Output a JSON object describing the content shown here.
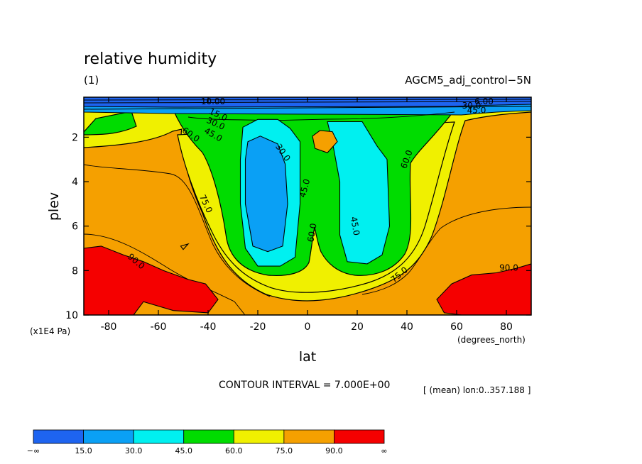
{
  "chart_data": {
    "type": "heatmap",
    "title": "relative humidity",
    "subtitle_left": "(1)",
    "subtitle_right": "AGCM5_adj_control−5N",
    "xlabel": "lat",
    "ylabel": "plev",
    "x_units": "(degrees_north)",
    "y_units": "(x1E4 Pa)",
    "xlim": [
      -90,
      90
    ],
    "ylim": [
      10,
      0.2
    ],
    "x_ticks": [
      -80,
      -60,
      -40,
      -20,
      0,
      20,
      40,
      60,
      80
    ],
    "y_ticks": [
      2,
      4,
      6,
      8,
      10
    ],
    "contour_interval_text": "CONTOUR INTERVAL = 7.000E+00",
    "mean_text": "[ (mean) lon:0..357.188 ]",
    "colorbar": {
      "labels": [
        "−∞",
        "15.0",
        "30.0",
        "45.0",
        "60.0",
        "75.0",
        "90.0",
        "∞"
      ],
      "colors": [
        "#1e64f0",
        "#0aa0f5",
        "#00f0f0",
        "#00dc00",
        "#f0f000",
        "#f5a000",
        "#f50000"
      ]
    },
    "contour_labels": [
      {
        "text": "10.00",
        "lat": -38,
        "plev": 0.4,
        "angle": 0
      },
      {
        "text": "15.0",
        "lat": -36,
        "plev": 1.0,
        "angle": 25
      },
      {
        "text": "30.0",
        "lat": -37,
        "plev": 1.4,
        "angle": 25
      },
      {
        "text": "45.0",
        "lat": -38,
        "plev": 1.9,
        "angle": 30
      },
      {
        "text": "60.0",
        "lat": -47,
        "plev": 1.9,
        "angle": 35
      },
      {
        "text": "75.0",
        "lat": -41,
        "plev": 5.0,
        "angle": 65
      },
      {
        "text": "90.0",
        "lat": -69,
        "plev": 7.6,
        "angle": 40
      },
      {
        "text": "30.0",
        "lat": -10,
        "plev": 2.7,
        "angle": 55
      },
      {
        "text": "45.0",
        "lat": -1,
        "plev": 4.3,
        "angle": -75
      },
      {
        "text": "60.0",
        "lat": 2,
        "plev": 6.3,
        "angle": -80
      },
      {
        "text": "45.0",
        "lat": 19,
        "plev": 6.0,
        "angle": 80
      },
      {
        "text": "60.0",
        "lat": 40,
        "plev": 3.0,
        "angle": -70
      },
      {
        "text": "75.0",
        "lat": 37,
        "plev": 8.2,
        "angle": -40
      },
      {
        "text": "90.0",
        "lat": 81,
        "plev": 7.9,
        "angle": 0
      },
      {
        "text": "6.00",
        "lat": 71,
        "plev": 0.4,
        "angle": 0
      },
      {
        "text": "30.0",
        "lat": 66,
        "plev": 0.6,
        "angle": 0
      },
      {
        "text": "45.0",
        "lat": 68,
        "plev": 0.8,
        "angle": 0
      }
    ],
    "regions": [
      {
        "level": "90-100",
        "color": "#f50000",
        "points": [
          [
            -90,
            7.0
          ],
          [
            -83,
            6.9
          ],
          [
            -74,
            7.3
          ],
          [
            -66,
            7.6
          ],
          [
            -58,
            8.0
          ],
          [
            -48,
            8.4
          ],
          [
            -41,
            8.6
          ],
          [
            -36,
            9.3
          ],
          [
            -40,
            9.9
          ],
          [
            -54,
            9.8
          ],
          [
            -66,
            9.4
          ],
          [
            -70,
            10
          ],
          [
            -90,
            10
          ]
        ]
      },
      {
        "level": "90-100",
        "color": "#f50000",
        "points": [
          [
            90,
            7.7
          ],
          [
            84,
            7.9
          ],
          [
            76,
            8.1
          ],
          [
            66,
            8.2
          ],
          [
            58,
            8.6
          ],
          [
            52,
            9.3
          ],
          [
            55,
            9.9
          ],
          [
            62,
            10
          ],
          [
            90,
            10
          ]
        ]
      },
      {
        "level": "30-45",
        "color": "#00f0f0",
        "points": [
          [
            -26,
            1.55
          ],
          [
            -20,
            1.2
          ],
          [
            -12,
            1.2
          ],
          [
            -7,
            1.6
          ],
          [
            -3,
            2.2
          ],
          [
            -3,
            5.0
          ],
          [
            -5,
            7.4
          ],
          [
            -11,
            7.8
          ],
          [
            -20,
            7.8
          ],
          [
            -25,
            7.0
          ],
          [
            -27,
            5.0
          ],
          [
            -27,
            3.0
          ]
        ]
      },
      {
        "level": "30-45",
        "color": "#00f0f0",
        "points": [
          [
            8,
            1.3
          ],
          [
            22,
            1.3
          ],
          [
            28,
            2.4
          ],
          [
            32,
            3.0
          ],
          [
            33,
            6.0
          ],
          [
            30,
            7.3
          ],
          [
            24,
            7.7
          ],
          [
            16,
            7.6
          ],
          [
            13,
            6.4
          ],
          [
            13,
            4.0
          ],
          [
            10,
            2.2
          ]
        ]
      },
      {
        "level": "15-30",
        "color": "#0aa0f5",
        "points": [
          [
            -24,
            2.2
          ],
          [
            -19,
            1.95
          ],
          [
            -12,
            2.3
          ],
          [
            -9,
            3.2
          ],
          [
            -8,
            5.0
          ],
          [
            -10,
            6.9
          ],
          [
            -16,
            7.15
          ],
          [
            -22,
            6.9
          ],
          [
            -25,
            5.0
          ],
          [
            -25,
            3.0
          ]
        ]
      },
      {
        "level": "75-90",
        "color": "#f5a000",
        "points": [
          [
            -51,
            6.9
          ],
          [
            -48,
            6.8
          ],
          [
            -50,
            7.05
          ]
        ]
      },
      {
        "level": "75-90",
        "color": "#f5a000",
        "points": [
          [
            2,
            1.95
          ],
          [
            5,
            1.7
          ],
          [
            10,
            1.75
          ],
          [
            12,
            2.2
          ],
          [
            8,
            2.7
          ],
          [
            3,
            2.5
          ]
        ]
      }
    ]
  }
}
